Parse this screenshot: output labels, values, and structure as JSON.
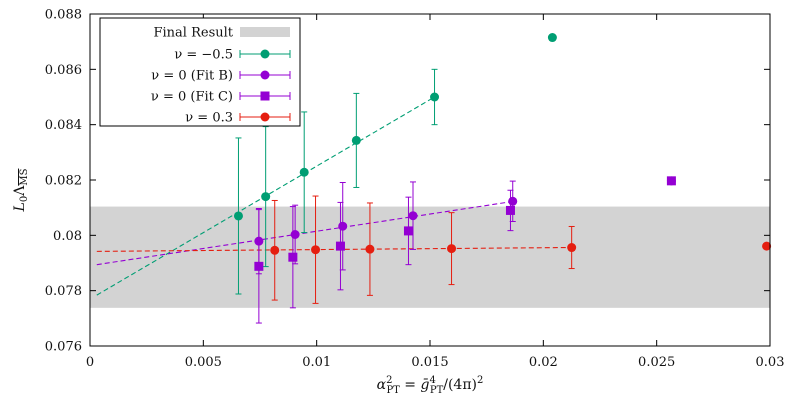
{
  "chart_data": {
    "type": "scatter",
    "xlabel": "α²_PT = ḡ⁴_PT/(4π)²",
    "ylabel": "L₀Λ_MS",
    "xlim": [
      0,
      0.03
    ],
    "ylim": [
      0.076,
      0.088
    ],
    "xticks": [
      "0",
      "0.005",
      "0.01",
      "0.015",
      "0.02",
      "0.025",
      "0.03"
    ],
    "yticks": [
      "0.076",
      "0.078",
      "0.08",
      "0.082",
      "0.084",
      "0.086",
      "0.088"
    ],
    "grid": false,
    "legend_position": "top-left",
    "band": {
      "name": "Final Result",
      "ymin": 0.07738,
      "ymax": 0.08104,
      "color": "#d3d3d3"
    },
    "series": [
      {
        "name": "ν = −0.5",
        "color": "#009e73",
        "marker": "circle",
        "points": [
          {
            "x": 0.00655,
            "y": 0.0807,
            "err": 0.00282
          },
          {
            "x": 0.00775,
            "y": 0.0814,
            "err": 0.00253
          },
          {
            "x": 0.00945,
            "y": 0.08228,
            "err": 0.00218
          },
          {
            "x": 0.01175,
            "y": 0.08343,
            "err": 0.0017
          },
          {
            "x": 0.0152,
            "y": 0.085,
            "err": 0.001
          },
          {
            "x": 0.0204,
            "y": 0.08715,
            "err": 0
          }
        ],
        "fit": {
          "x": [
            0.0003,
            0.0152
          ],
          "y": [
            0.07784,
            0.085
          ]
        }
      },
      {
        "name": "ν = 0 (Fit B)",
        "color": "#9400d3",
        "marker": "circle",
        "points": [
          {
            "x": 0.00745,
            "y": 0.07979,
            "err": 0.00118
          },
          {
            "x": 0.00905,
            "y": 0.08003,
            "err": 0.00106
          },
          {
            "x": 0.01115,
            "y": 0.08033,
            "err": 0.00158
          },
          {
            "x": 0.01425,
            "y": 0.08071,
            "err": 0.00122
          },
          {
            "x": 0.01865,
            "y": 0.08123,
            "err": 0.00073
          },
          {
            "x": 0.02565,
            "y": 0.08197,
            "err": 0
          }
        ],
        "fit": {
          "x": [
            0.0003,
            0.0187
          ],
          "y": [
            0.07894,
            0.08123
          ]
        }
      },
      {
        "name": "ν = 0 (Fit C)",
        "color": "#9400d3",
        "marker": "square",
        "points": [
          {
            "x": 0.00745,
            "y": 0.07888,
            "err": 0.00205
          },
          {
            "x": 0.00895,
            "y": 0.07921,
            "err": 0.00183
          },
          {
            "x": 0.01105,
            "y": 0.07961,
            "err": 0.00158
          },
          {
            "x": 0.01405,
            "y": 0.08016,
            "err": 0.00122
          },
          {
            "x": 0.01855,
            "y": 0.0809,
            "err": 0.00073
          },
          {
            "x": 0.02565,
            "y": 0.08197,
            "err": 0
          }
        ]
      },
      {
        "name": "ν = 0.3",
        "color": "#e51e10",
        "marker": "circle",
        "points": [
          {
            "x": 0.00815,
            "y": 0.07946,
            "err": 0.0018
          },
          {
            "x": 0.00995,
            "y": 0.07948,
            "err": 0.00194
          },
          {
            "x": 0.01235,
            "y": 0.0795,
            "err": 0.00167
          },
          {
            "x": 0.01595,
            "y": 0.07952,
            "err": 0.0013
          },
          {
            "x": 0.02125,
            "y": 0.07956,
            "err": 0.00076
          },
          {
            "x": 0.02985,
            "y": 0.07961,
            "err": 0
          }
        ],
        "fit": {
          "x": [
            0.0003,
            0.0212
          ],
          "y": [
            0.07942,
            0.07956
          ]
        }
      }
    ]
  },
  "legend": {
    "band_label": "Final Result",
    "entries": [
      "ν = −0.5",
      "ν = 0 (Fit B)",
      "ν = 0 (Fit C)",
      "ν = 0.3"
    ]
  },
  "labels": {
    "ylabel_main": "L",
    "ylabel_sub": "0",
    "ylabel_lambda": "Λ",
    "ylabel_ms": "MS",
    "xlabel_alpha": "α",
    "xlabel_sup": "2",
    "xlabel_sub": "PT",
    "xlabel_eq": " = ",
    "xlabel_g": "ḡ",
    "xlabel_gsup": "4",
    "xlabel_gsub": "PT",
    "xlabel_den": "/(4π)",
    "xlabel_densup": "2"
  }
}
